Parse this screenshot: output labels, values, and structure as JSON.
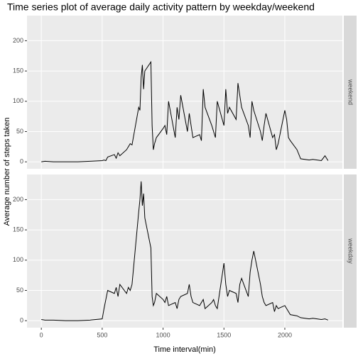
{
  "chart_data": {
    "type": "line",
    "title": "Time series plot of average daily activity pattern by weekday/weekend",
    "x_label": "Time interval(min)",
    "y_label": "Average number of steps taken",
    "x": [
      0,
      30,
      100,
      200,
      300,
      400,
      500,
      515,
      530,
      545,
      600,
      615,
      630,
      645,
      700,
      715,
      730,
      745,
      800,
      810,
      820,
      830,
      840,
      850,
      900,
      910,
      920,
      930,
      945,
      1000,
      1015,
      1030,
      1045,
      1100,
      1115,
      1130,
      1145,
      1200,
      1215,
      1230,
      1245,
      1300,
      1315,
      1330,
      1345,
      1400,
      1415,
      1430,
      1445,
      1500,
      1515,
      1530,
      1545,
      1600,
      1615,
      1630,
      1645,
      1700,
      1715,
      1730,
      1745,
      1800,
      1815,
      1830,
      1845,
      1900,
      1915,
      1930,
      1945,
      2000,
      2015,
      2030,
      2045,
      2100,
      2130,
      2200,
      2230,
      2300,
      2330,
      2355
    ],
    "series": [
      {
        "name": "weekend",
        "color": "#000000",
        "values": [
          0,
          1,
          0,
          0,
          0,
          1,
          2,
          3,
          2,
          8,
          12,
          6,
          15,
          10,
          20,
          25,
          30,
          28,
          90,
          85,
          140,
          160,
          120,
          150,
          165,
          60,
          20,
          30,
          40,
          55,
          60,
          45,
          100,
          40,
          90,
          70,
          110,
          50,
          80,
          60,
          40,
          45,
          35,
          120,
          90,
          60,
          50,
          40,
          100,
          60,
          120,
          80,
          90,
          70,
          130,
          110,
          90,
          60,
          40,
          100,
          85,
          50,
          35,
          60,
          80,
          40,
          45,
          20,
          30,
          85,
          70,
          40,
          35,
          20,
          5,
          3,
          4,
          2,
          10,
          2
        ]
      },
      {
        "name": "weekday",
        "color": "#000000",
        "values": [
          2,
          1,
          1,
          0,
          0,
          1,
          3,
          20,
          35,
          50,
          45,
          55,
          40,
          60,
          45,
          55,
          50,
          60,
          180,
          200,
          230,
          190,
          210,
          170,
          120,
          40,
          25,
          30,
          45,
          35,
          30,
          40,
          25,
          30,
          20,
          35,
          40,
          45,
          60,
          40,
          30,
          25,
          30,
          35,
          20,
          30,
          35,
          25,
          20,
          95,
          60,
          40,
          50,
          45,
          30,
          60,
          70,
          40,
          80,
          100,
          115,
          60,
          40,
          30,
          25,
          30,
          15,
          25,
          20,
          25,
          20,
          15,
          10,
          8,
          5,
          3,
          4,
          2,
          3,
          1
        ]
      }
    ],
    "xlim": [
      -117.75,
      2472.75
    ],
    "xticks": [
      0,
      500,
      1000,
      1500,
      2000
    ],
    "ylim": [
      -11.5,
      241.5
    ],
    "yticks": [
      0,
      50,
      100,
      150,
      200
    ],
    "grid": true
  }
}
